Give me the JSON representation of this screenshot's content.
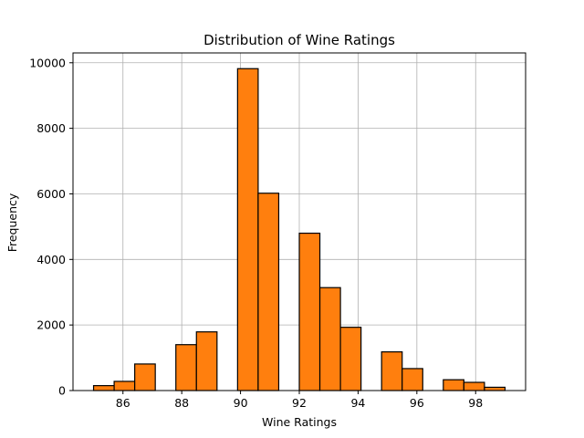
{
  "chart_data": {
    "type": "bar",
    "title": "Distribution of Wine Ratings",
    "xlabel": "Wine Ratings",
    "ylabel": "Frequency",
    "xlim": [
      84.3,
      99.7
    ],
    "ylim": [
      0,
      10300
    ],
    "xticks": [
      86,
      88,
      90,
      92,
      94,
      96,
      98
    ],
    "yticks": [
      0,
      2000,
      4000,
      6000,
      8000,
      10000
    ],
    "grid": true,
    "bar_color": "#ff7f0e",
    "edge_color": "#000000",
    "bins": [
      {
        "x0": 85.0,
        "x1": 85.7,
        "value": 150
      },
      {
        "x0": 85.7,
        "x1": 86.4,
        "value": 280
      },
      {
        "x0": 86.4,
        "x1": 87.1,
        "value": 810
      },
      {
        "x0": 87.1,
        "x1": 87.8,
        "value": 0
      },
      {
        "x0": 87.8,
        "x1": 88.5,
        "value": 1400
      },
      {
        "x0": 88.5,
        "x1": 89.2,
        "value": 1790
      },
      {
        "x0": 89.2,
        "x1": 89.9,
        "value": 0
      },
      {
        "x0": 89.9,
        "x1": 90.6,
        "value": 9820
      },
      {
        "x0": 90.6,
        "x1": 91.3,
        "value": 6020
      },
      {
        "x0": 91.3,
        "x1": 92.0,
        "value": 0
      },
      {
        "x0": 92.0,
        "x1": 92.7,
        "value": 4800
      },
      {
        "x0": 92.7,
        "x1": 93.4,
        "value": 3140
      },
      {
        "x0": 93.4,
        "x1": 94.1,
        "value": 1930
      },
      {
        "x0": 94.1,
        "x1": 94.8,
        "value": 0
      },
      {
        "x0": 94.8,
        "x1": 95.5,
        "value": 1180
      },
      {
        "x0": 95.5,
        "x1": 96.2,
        "value": 670
      },
      {
        "x0": 96.2,
        "x1": 96.9,
        "value": 0
      },
      {
        "x0": 96.9,
        "x1": 97.6,
        "value": 330
      },
      {
        "x0": 97.6,
        "x1": 98.3,
        "value": 250
      },
      {
        "x0": 98.3,
        "x1": 99.0,
        "value": 100
      }
    ]
  }
}
